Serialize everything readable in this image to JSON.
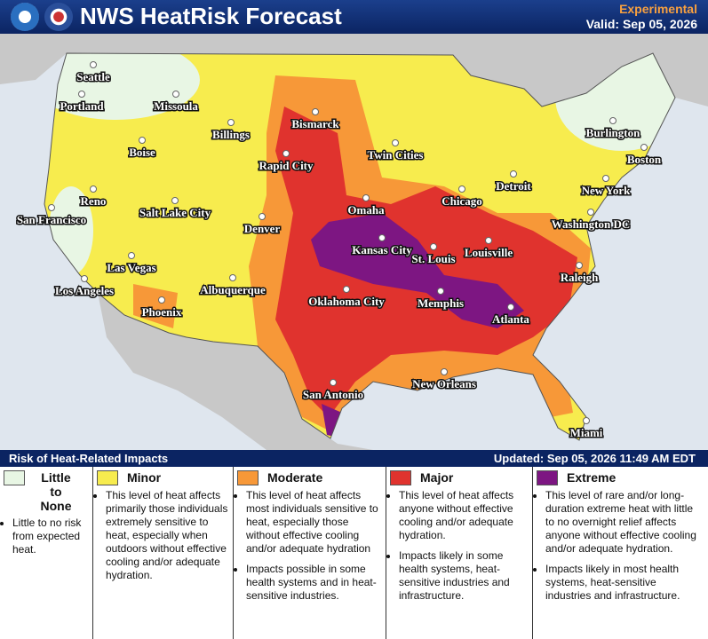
{
  "header": {
    "title": "NWS HeatRisk Forecast",
    "status": "Experimental",
    "valid": "Valid: Sep 05, 2026"
  },
  "cities": [
    "Seattle",
    "Portland",
    "Missoula",
    "Billings",
    "Boise",
    "Bismarck",
    "Rapid City",
    "Twin Cities",
    "Burlington",
    "Boston",
    "Detroit",
    "Chicago",
    "New York",
    "Reno",
    "San Francisco",
    "Salt Lake City",
    "Denver",
    "Omaha",
    "Kansas City",
    "St. Louis",
    "Louisville",
    "Washington DC",
    "Las Vegas",
    "Los Angeles",
    "Albuquerque",
    "Oklahoma City",
    "Memphis",
    "Raleigh",
    "Atlanta",
    "Phoenix",
    "San Antonio",
    "New Orleans",
    "Miami"
  ],
  "legend": {
    "title": "Risk of Heat-Related Impacts",
    "updated": "Updated: Sep 05, 2026 11:49 AM EDT",
    "levels": [
      {
        "name": "Little to None",
        "color": "#e8f6e4",
        "bullets": [
          "Little to no risk from expected heat."
        ]
      },
      {
        "name": "Minor",
        "color": "#f7ec4e",
        "bullets": [
          "This level of heat affects primarily those individuals extremely sensitive to heat, especially when outdoors without effective cooling and/or adequate hydration."
        ]
      },
      {
        "name": "Moderate",
        "color": "#f79838",
        "bullets": [
          "This level of heat affects most individuals sensitive to heat, especially those without effective cooling and/or adequate hydration",
          "Impacts possible in some health systems and in heat-sensitive industries."
        ]
      },
      {
        "name": "Major",
        "color": "#e0332e",
        "bullets": [
          "This level of heat affects anyone without effective cooling and/or adequate hydration.",
          "Impacts likely in some health systems, heat-sensitive industries and infrastructure."
        ]
      },
      {
        "name": "Extreme",
        "color": "#7d1682",
        "bullets": [
          "This level of rare and/or long-duration extreme heat with little to no overnight relief affects anyone without effective cooling and/or adequate hydration.",
          "Impacts likely in most health systems, heat-sensitive industries and infrastructure."
        ]
      }
    ]
  }
}
